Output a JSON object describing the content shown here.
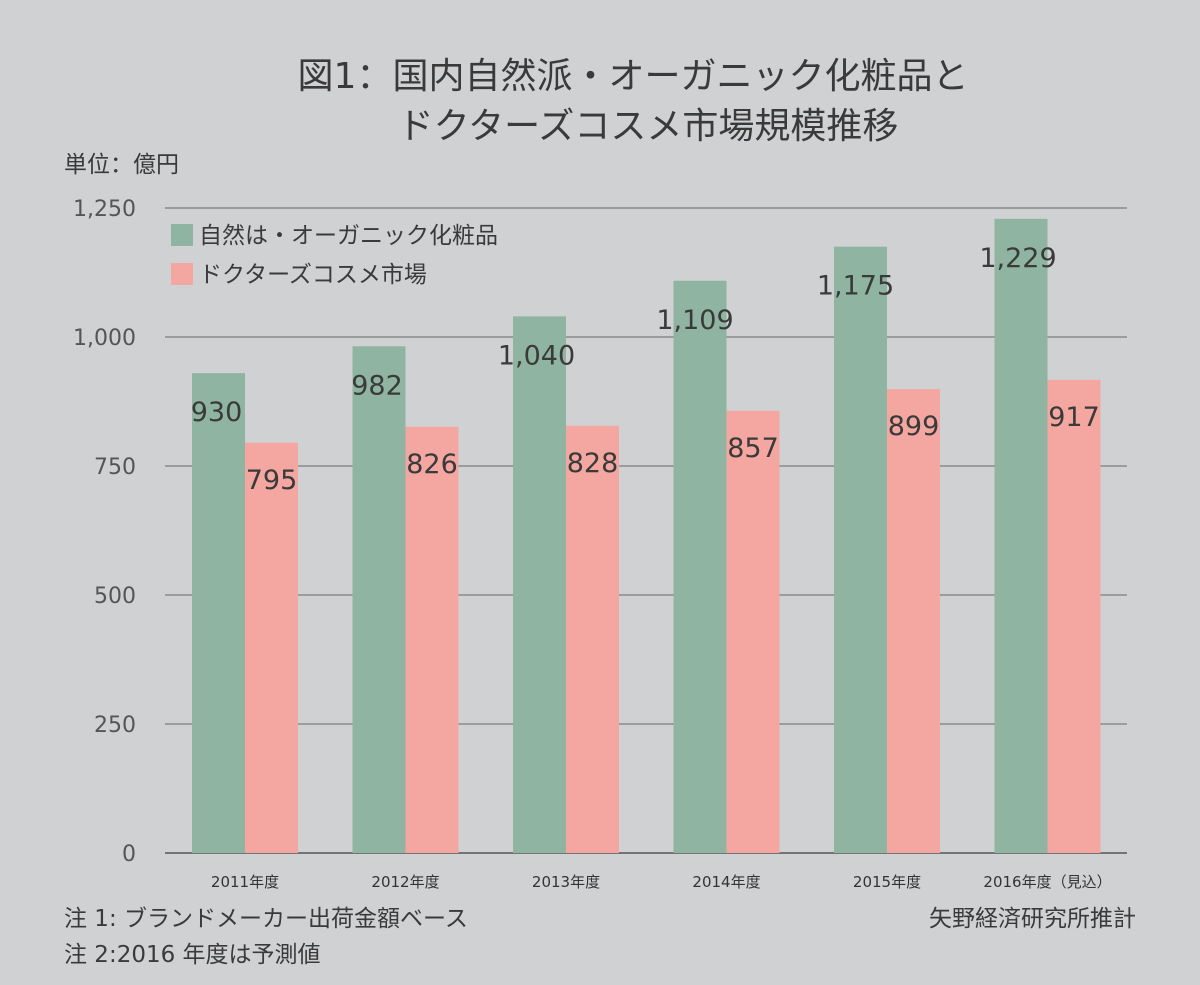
{
  "chart_data": {
    "type": "bar",
    "title_lines": [
      "図1：国内自然派・オーガニック化粧品と",
      "ドクターズコスメ市場規模推移"
    ],
    "unit_label": "単位：億円",
    "categories": [
      "2011年度",
      "2012年度",
      "2013年度",
      "2014年度",
      "2015年度",
      "2016年度（見込）"
    ],
    "series": [
      {
        "name": "自然は・オーガニック化粧品",
        "color": "#8fb5a2",
        "values": [
          930,
          982,
          1040,
          1109,
          1175,
          1229
        ],
        "labels": [
          "930",
          "982",
          "1,040",
          "1,109",
          "1,175",
          "1,229"
        ]
      },
      {
        "name": "ドクターズコスメ市場",
        "color": "#f4a6a0",
        "values": [
          795,
          826,
          828,
          857,
          899,
          917
        ],
        "labels": [
          "795",
          "826",
          "828",
          "857",
          "899",
          "917"
        ]
      }
    ],
    "ylim": [
      0,
      1250
    ],
    "yticks": [
      0,
      250,
      500,
      750,
      1000,
      1250
    ],
    "ytick_labels": [
      "0",
      "250",
      "500",
      "750",
      "1,000",
      "1,250"
    ],
    "grid": true,
    "legend_position": "top-left"
  },
  "notes": {
    "note1": "注 1: ブランドメーカー出荷金額ベース",
    "note2": "注 2:2016 年度は予測値",
    "source": "矢野経済研究所推計"
  }
}
